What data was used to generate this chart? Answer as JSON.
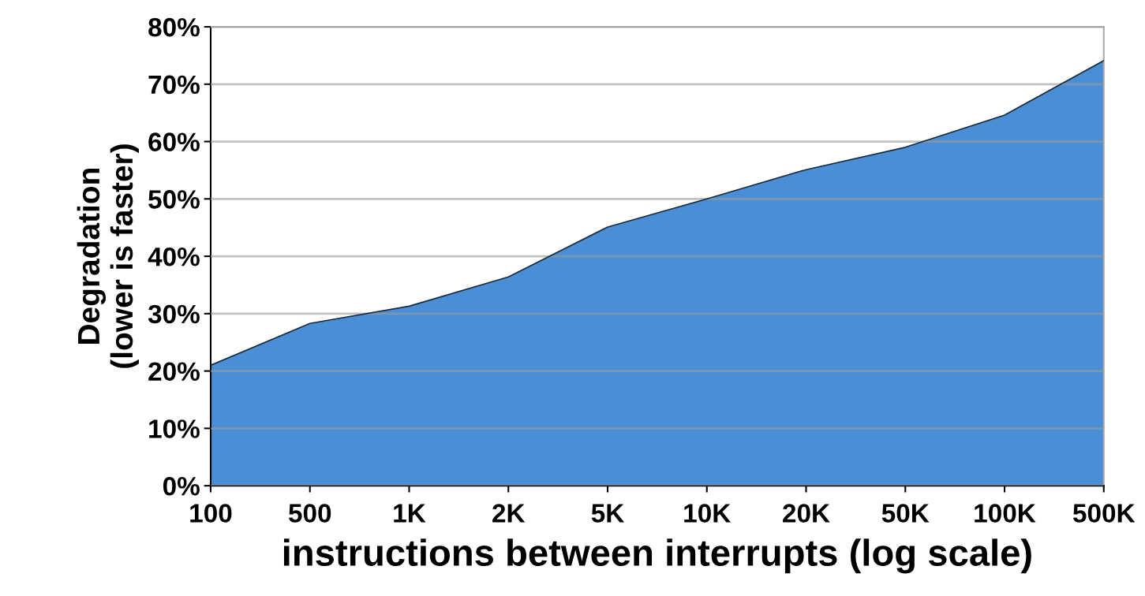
{
  "chart_data": {
    "type": "area",
    "xlabel": "instructions between interrupts (log scale)",
    "ylabel": "Degradation\n(lower is faster)",
    "categories": [
      "100",
      "500",
      "1K",
      "2K",
      "5K",
      "10K",
      "20K",
      "50K",
      "100K",
      "500K"
    ],
    "series": [
      {
        "color": "#4a8fd6",
        "values": [
          21,
          28.3,
          31.3,
          36.4,
          45.1,
          50,
          55.1,
          59,
          64.6,
          74.1
        ]
      }
    ],
    "ylim": [
      0,
      80
    ],
    "yticks": [
      {
        "value": 0,
        "label": "0%"
      },
      {
        "value": 10,
        "label": "10%"
      },
      {
        "value": 20,
        "label": "20%"
      },
      {
        "value": 30,
        "label": "30%"
      },
      {
        "value": 40,
        "label": "40%"
      },
      {
        "value": 50,
        "label": "50%"
      },
      {
        "value": 60,
        "label": "60%"
      },
      {
        "value": 70,
        "label": "70%"
      },
      {
        "value": 80,
        "label": "80%"
      }
    ],
    "grid": "y"
  }
}
